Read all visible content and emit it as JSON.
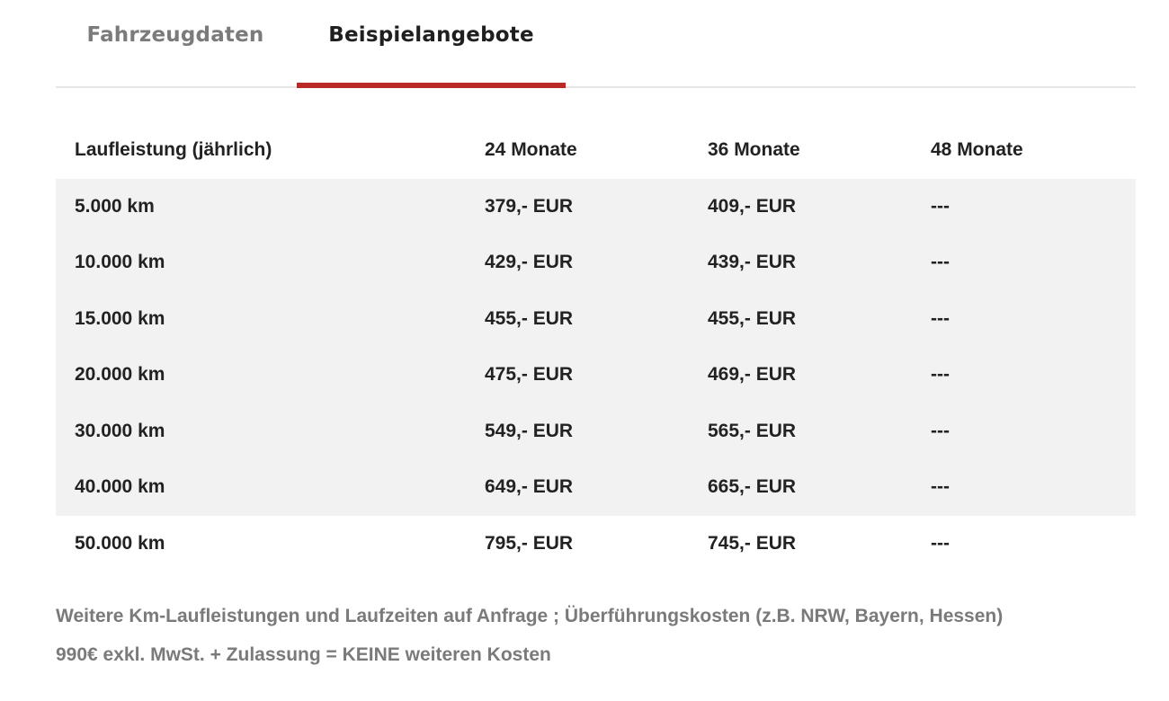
{
  "tabs": [
    {
      "label": "Fahrzeugdaten",
      "active": false
    },
    {
      "label": "Beispielangebote",
      "active": true
    }
  ],
  "accent_color": "#b72a25",
  "table": {
    "headers": [
      "Laufleistung (jährlich)",
      "24 Monate",
      "36 Monate",
      "48 Monate"
    ],
    "rows": [
      [
        "5.000 km",
        "379,- EUR",
        "409,- EUR",
        "---"
      ],
      [
        "10.000 km",
        "429,- EUR",
        "439,- EUR",
        "---"
      ],
      [
        "15.000 km",
        "455,- EUR",
        "455,- EUR",
        "---"
      ],
      [
        "20.000 km",
        "475,- EUR",
        "469,- EUR",
        "---"
      ],
      [
        "30.000 km",
        "549,- EUR",
        "565,- EUR",
        "---"
      ],
      [
        "40.000 km",
        "649,- EUR",
        "665,- EUR",
        "---"
      ],
      [
        "50.000 km",
        "795,- EUR",
        "745,- EUR",
        "---"
      ]
    ]
  },
  "footnote": {
    "line1": "Weitere Km-Laufleistungen und Laufzeiten auf Anfrage ; Überführungskosten (z.B. NRW, Bayern, Hessen)",
    "line2": "990€ exkl. MwSt. + Zulassung = KEINE weiteren Kosten"
  }
}
